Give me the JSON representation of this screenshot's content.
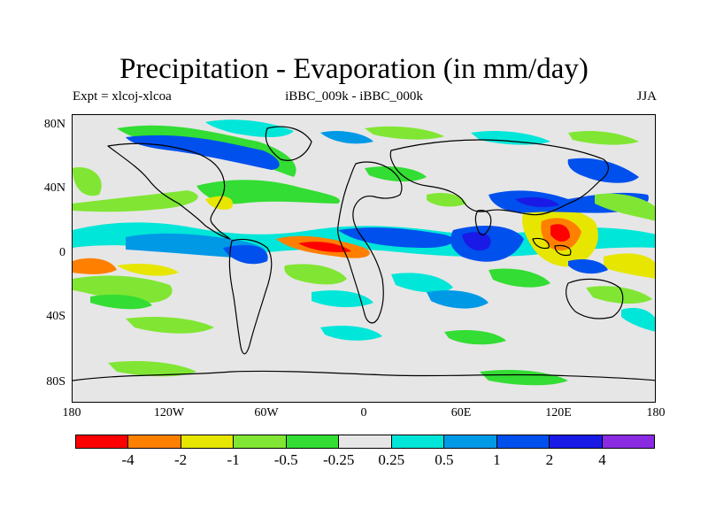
{
  "title": "Precipitation - Evaporation (in mm/day)",
  "left_string": "Expt = xlcoj-xlcoa",
  "center_string": "iBBC_009k - iBBC_000k",
  "right_string": "JJA",
  "lat_ticks": [
    "80N",
    "40N",
    "0",
    "40S",
    "80S"
  ],
  "lon_ticks": [
    "180",
    "120W",
    "60W",
    "0",
    "60E",
    "120E",
    "180"
  ],
  "colorbar": {
    "labels": [
      "-4",
      "-2",
      "-1",
      "-0.5",
      "-0.25",
      "0.25",
      "0.5",
      "1",
      "2",
      "4"
    ],
    "colors": [
      "#ff0000",
      "#ff8000",
      "#e6e600",
      "#80e633",
      "#33dd33",
      "#e6e6e6",
      "#00e6d9",
      "#0099e6",
      "#0050ee",
      "#1a1ae6",
      "#8a2be2"
    ]
  },
  "colors": {
    "background": "#e6e6e6",
    "coastline": "#000000"
  }
}
